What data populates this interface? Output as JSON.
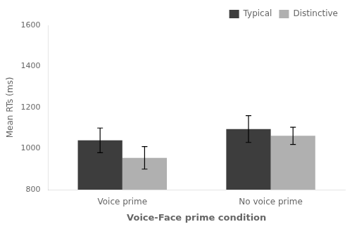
{
  "chart_data": {
    "type": "bar",
    "categories": [
      "Voice prime",
      "No voice prime"
    ],
    "series": [
      {
        "name": "Typical",
        "color": "#3d3d3d",
        "values": [
          1040,
          1095
        ],
        "errors": [
          60,
          65
        ]
      },
      {
        "name": "Distinctive",
        "color": "#b0b0b0",
        "values": [
          955,
          1062
        ],
        "errors": [
          55,
          42
        ]
      }
    ],
    "xlabel": "Voice-Face prime condition",
    "ylabel": "Mean RTs (ms)",
    "ylim": [
      800,
      1600
    ],
    "yticks": [
      800,
      1000,
      1200,
      1400,
      1600
    ],
    "grid": false,
    "legend": "upper right"
  }
}
